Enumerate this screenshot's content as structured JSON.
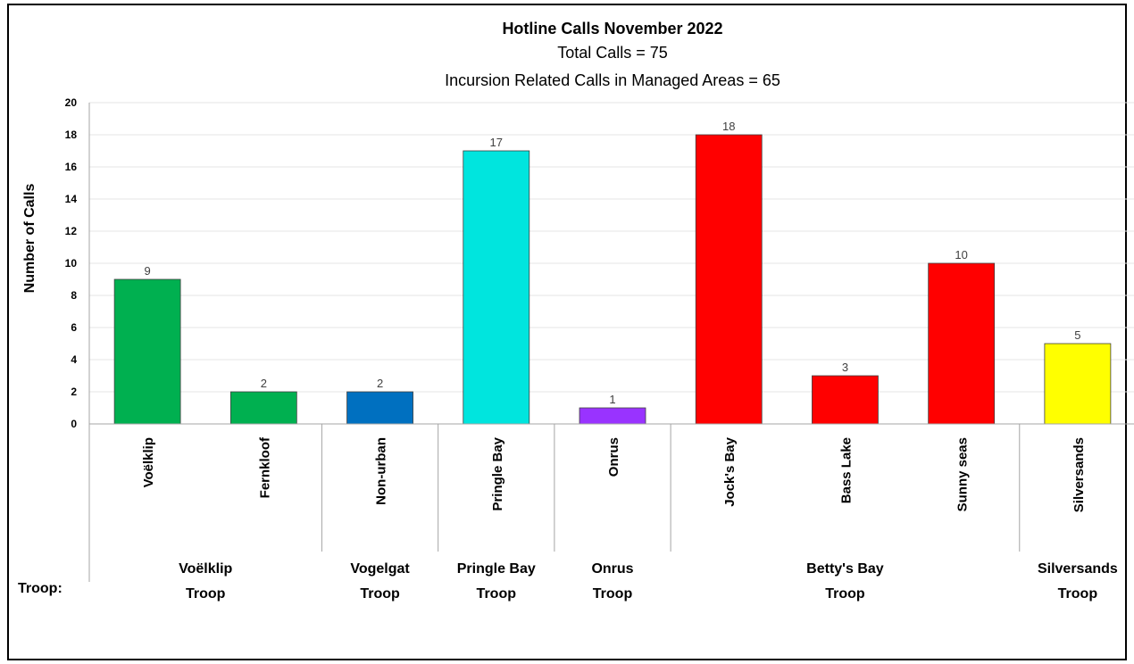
{
  "chart_data": {
    "type": "bar",
    "title": "Hotline Calls November 2022",
    "subtitle_1": "Total Calls = 75",
    "subtitle_2": "Incursion Related Calls in Managed Areas = 65",
    "ylabel": "Number of Calls",
    "ylim": [
      0,
      20
    ],
    "yticks": [
      0,
      2,
      4,
      6,
      8,
      10,
      12,
      14,
      16,
      18,
      20
    ],
    "grid": true,
    "categories": [
      "Voëlklip",
      "Fernkloof",
      "Non-urban",
      "Pringle Bay",
      "Onrus",
      "Jock's Bay",
      "Bass Lake",
      "Sunny seas",
      "Silversands"
    ],
    "values": [
      9,
      2,
      2,
      17,
      1,
      18,
      3,
      10,
      5
    ],
    "bar_colors": [
      "#00b050",
      "#00b050",
      "#0070c0",
      "#00e5de",
      "#9933ff",
      "#ff0000",
      "#ff0000",
      "#ff0000",
      "#ffff00"
    ],
    "group_axis_label": "Troop:",
    "groups": [
      {
        "line1": "Voëlklip",
        "line2": "Troop",
        "start": 0,
        "end": 1
      },
      {
        "line1": "Vogelgat",
        "line2": "Troop",
        "start": 2,
        "end": 2
      },
      {
        "line1": "Pringle Bay",
        "line2": "Troop",
        "start": 3,
        "end": 3
      },
      {
        "line1": "Onrus",
        "line2": "Troop",
        "start": 4,
        "end": 4
      },
      {
        "line1": "Betty's Bay",
        "line2": "Troop",
        "start": 5,
        "end": 7
      },
      {
        "line1": "Silversands",
        "line2": "Troop",
        "start": 8,
        "end": 8
      }
    ]
  }
}
